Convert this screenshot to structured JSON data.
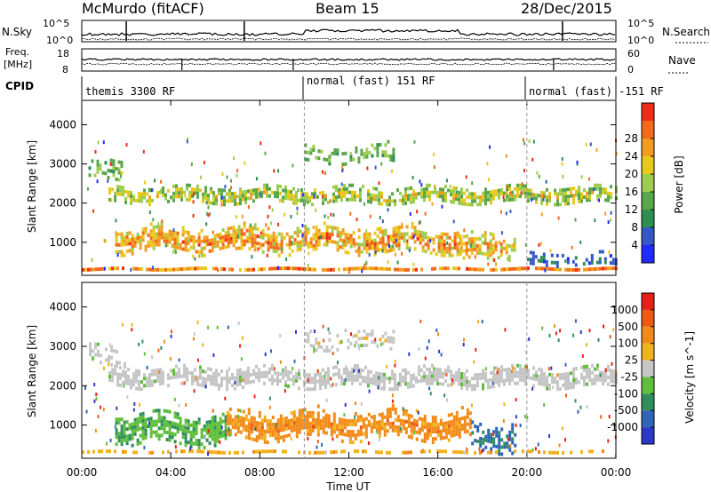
{
  "header": {
    "station": "McMurdo (fitACF)",
    "beam": "Beam 15",
    "date": "28/Dec/2015"
  },
  "chart_data": [
    {
      "type": "line",
      "panel": "noise",
      "left_label": "N.Sky",
      "right_label": "N.Search",
      "left_ticks": [
        "10^5",
        "10^0"
      ],
      "right_ticks": [
        "10^5",
        "10^0"
      ],
      "x_range": [
        "00:00",
        "24:00"
      ]
    },
    {
      "type": "line",
      "panel": "frequency-nave",
      "left_label_top": "Freq.",
      "left_label_bottom": "[MHz]",
      "right_label": "Nave",
      "left_ticks": [
        18,
        8
      ],
      "right_ticks": [
        60,
        0
      ],
      "x_range": [
        "00:00",
        "24:00"
      ]
    },
    {
      "type": "table",
      "panel": "cpid",
      "label": "CPID",
      "segments": [
        {
          "label": "themis 3300 RF",
          "start_hour": 0,
          "end_hour": 10
        },
        {
          "label": "normal (fast) 151 RF",
          "start_hour": 10,
          "end_hour": 20
        },
        {
          "label": "normal (fast) -151 RF",
          "start_hour": 20,
          "end_hour": 24
        }
      ]
    },
    {
      "type": "heatmap",
      "panel": "power",
      "ylabel": "Slant Range [km]",
      "yticks": [
        1000,
        2000,
        3000,
        4000
      ],
      "ylim": [
        180,
        4600
      ],
      "xlim": [
        0,
        24
      ],
      "colorbar": {
        "label": "Power [dB]",
        "ticks": [
          "4",
          "8",
          "12",
          "16",
          "20",
          "24",
          "28"
        ],
        "colors": [
          "#1f2bff",
          "#3558c9",
          "#2e8f50",
          "#5aa64b",
          "#9ccd4f",
          "#e9c81e",
          "#f39b21",
          "#f36a1a",
          "#ee2d14"
        ]
      },
      "bands": [
        {
          "start": 1.2,
          "end": 24,
          "center": 2150,
          "width": 260,
          "density": 0.75,
          "level": [
            0.35,
            0.75
          ]
        },
        {
          "start": 0.3,
          "end": 1.8,
          "center": 2800,
          "width": 300,
          "density": 0.5,
          "level": [
            0.3,
            0.6
          ]
        },
        {
          "start": 1.5,
          "end": 17,
          "center": 1000,
          "width": 380,
          "density": 0.8,
          "level": [
            0.5,
            0.95
          ]
        },
        {
          "start": 17,
          "end": 19.5,
          "center": 800,
          "width": 400,
          "density": 0.6,
          "level": [
            0.45,
            0.9
          ]
        },
        {
          "start": 10,
          "end": 14,
          "center": 3200,
          "width": 280,
          "density": 0.45,
          "level": [
            0.3,
            0.55
          ]
        },
        {
          "start": 0,
          "end": 24,
          "center": 260,
          "width": 80,
          "density": 0.85,
          "level": [
            0.6,
            0.95
          ]
        },
        {
          "start": 20,
          "end": 24,
          "center": 500,
          "width": 200,
          "density": 0.4,
          "level": [
            0.1,
            0.35
          ]
        }
      ]
    },
    {
      "type": "heatmap",
      "panel": "velocity",
      "ylabel": "Slant Range [km]",
      "yticks": [
        1000,
        2000,
        3000,
        4000
      ],
      "ylim": [
        180,
        4600
      ],
      "xlim": [
        0,
        24
      ],
      "xticks": [
        "00:00",
        "04:00",
        "08:00",
        "12:00",
        "16:00",
        "20:00",
        "00:00"
      ],
      "xlabel": "Time UT",
      "colorbar": {
        "label": "Velocity [m s^-1]",
        "ticks": [
          "1000",
          "500",
          "100",
          "25",
          "-25",
          "-100",
          "-500",
          "-1000"
        ],
        "colors": [
          "#2a39c6",
          "#2f64b6",
          "#2f8e5c",
          "#5fbf3a",
          "#c6c6c6",
          "#f2b21e",
          "#f28a1a",
          "#ee5a14",
          "#e8201a"
        ]
      },
      "bands": [
        {
          "start": 1.2,
          "end": 24,
          "center": 2150,
          "width": 300,
          "density": 0.8,
          "level": [
            0.44,
            0.56
          ]
        },
        {
          "start": 0.2,
          "end": 2,
          "center": 2700,
          "width": 300,
          "density": 0.5,
          "level": [
            0.44,
            0.56
          ]
        },
        {
          "start": 1.5,
          "end": 6.5,
          "center": 850,
          "width": 450,
          "density": 0.85,
          "level": [
            0.3,
            0.42
          ]
        },
        {
          "start": 6.5,
          "end": 17.5,
          "center": 950,
          "width": 420,
          "density": 0.85,
          "level": [
            0.65,
            0.8
          ]
        },
        {
          "start": 17.5,
          "end": 19.5,
          "center": 650,
          "width": 420,
          "density": 0.6,
          "level": [
            0.15,
            0.3
          ]
        },
        {
          "start": 10,
          "end": 14,
          "center": 3100,
          "width": 280,
          "density": 0.35,
          "level": [
            0.44,
            0.62
          ]
        },
        {
          "start": 0,
          "end": 24,
          "center": 260,
          "width": 80,
          "density": 0.5,
          "level": [
            0.55,
            0.7
          ]
        }
      ]
    }
  ]
}
